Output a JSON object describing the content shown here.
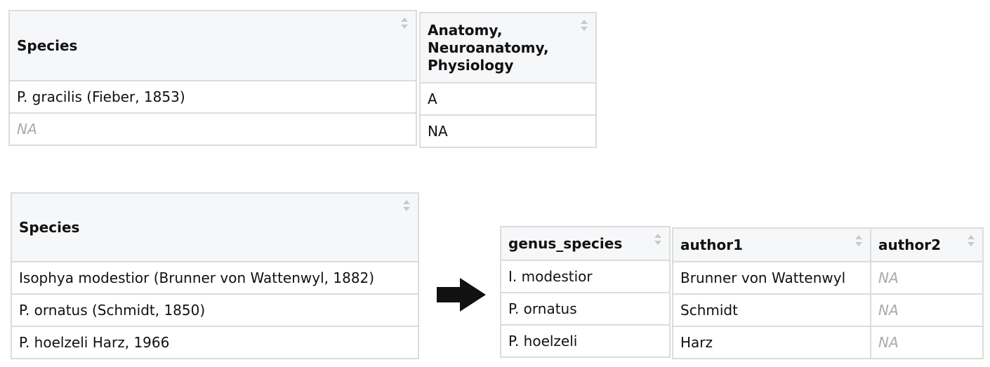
{
  "table_top_left": {
    "headers": [
      "Species"
    ],
    "rows": [
      [
        "P. gracilis (Fieber, 1853)"
      ],
      [
        "NA"
      ]
    ]
  },
  "table_top_right": {
    "headers": [
      "Anatomy, Neuroanatomy, Physiology"
    ],
    "rows": [
      [
        "A"
      ],
      [
        "NA"
      ]
    ]
  },
  "table_bottom_left": {
    "headers": [
      "Species"
    ],
    "rows": [
      [
        "Isophya modestior (Brunner von Wattenwyl, 1882)"
      ],
      [
        "P. ornatus (Schmidt, 1850)"
      ],
      [
        "P. hoelzeli Harz, 1966"
      ]
    ]
  },
  "table_genus": {
    "headers": [
      "genus_species"
    ],
    "rows": [
      [
        "I. modestior"
      ],
      [
        "P. ornatus"
      ],
      [
        "P. hoelzeli"
      ]
    ]
  },
  "table_authors": {
    "headers": [
      "author1",
      "author2"
    ],
    "rows": [
      [
        "Brunner von Wattenwyl",
        "NA"
      ],
      [
        "Schmidt",
        "NA"
      ],
      [
        "Harz",
        "NA"
      ]
    ]
  },
  "arrow_icon": "arrow-right-icon",
  "colors": {
    "header_bg": "#f6f7f9",
    "border": "#dcdcdc",
    "na_text": "#aaaaaa",
    "arrow": "#111111"
  }
}
